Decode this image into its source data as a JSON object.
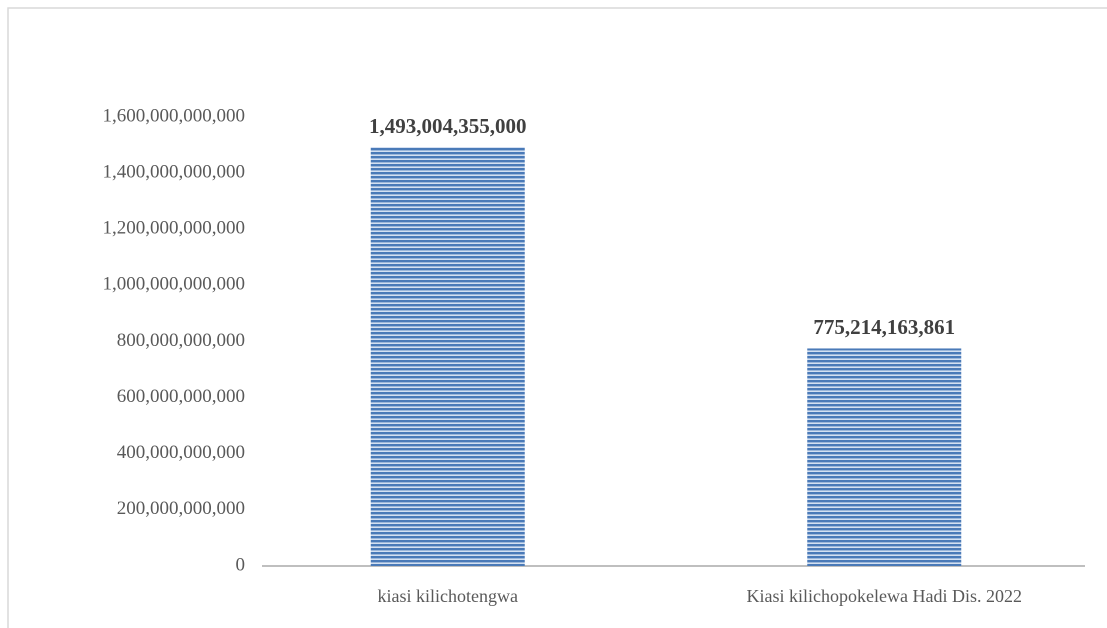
{
  "chart_data": {
    "type": "bar",
    "categories": [
      "kiasi kilichotengwa",
      "Kiasi kilichopokelewa Hadi Dis. 2022"
    ],
    "values": [
      1493004355000,
      775214163861
    ],
    "value_labels": [
      "1,493,004,355,000",
      "775,214,163,861"
    ],
    "color": "#4a7ab8",
    "ylim": [
      0,
      1600000000000
    ],
    "yticks": [
      0,
      {
        "value": 200000000000,
        "label": "200,000,000,000"
      },
      {
        "value": 400000000000,
        "label": "400,000,000,000"
      },
      {
        "value": 600000000000,
        "label": "600,000,000,000"
      },
      {
        "value": 800000000000,
        "label": "800,000,000,000"
      },
      {
        "value": 1000000000000,
        "label": "1,000,000,000,000"
      },
      {
        "value": 1200000000000,
        "label": "1,200,000,000,000"
      },
      {
        "value": 1400000000000,
        "label": "1,400,000,000,000"
      },
      {
        "value": 1600000000000,
        "label": "1,600,000,000,000"
      }
    ],
    "grid": false
  }
}
